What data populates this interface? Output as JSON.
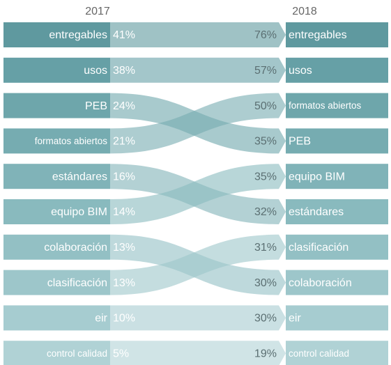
{
  "chart_data": {
    "type": "ranking",
    "series": [
      {
        "name": "2017",
        "categories": [
          "entregables",
          "usos",
          "PEB",
          "formatos abiertos",
          "estándares",
          "equipo BIM",
          "colaboración",
          "clasificación",
          "eir",
          "control calidad"
        ],
        "values": [
          41,
          38,
          24,
          21,
          16,
          14,
          13,
          13,
          10,
          5
        ],
        "value_labels": [
          "41%",
          "38%",
          "24%",
          "21%",
          "16%",
          "14%",
          "13%",
          "13%",
          "10%",
          "5%"
        ]
      },
      {
        "name": "2018",
        "categories": [
          "entregables",
          "usos",
          "formatos abiertos",
          "PEB",
          "equipo BIM",
          "estándares",
          "clasificación",
          "colaboración",
          "eir",
          "control calidad"
        ],
        "values": [
          76,
          57,
          50,
          35,
          35,
          32,
          31,
          30,
          30,
          19
        ],
        "value_labels": [
          "76%",
          "57%",
          "50%",
          "35%",
          "35%",
          "32%",
          "31%",
          "30%",
          "30%",
          "19%"
        ]
      }
    ],
    "colors": [
      "#5f999f",
      "#66a0a6",
      "#6ea6ab",
      "#76acb1",
      "#80b3b8",
      "#89babe",
      "#93c0c4",
      "#9dc6ca",
      "#a6ccd0",
      "#b0d2d5"
    ]
  }
}
